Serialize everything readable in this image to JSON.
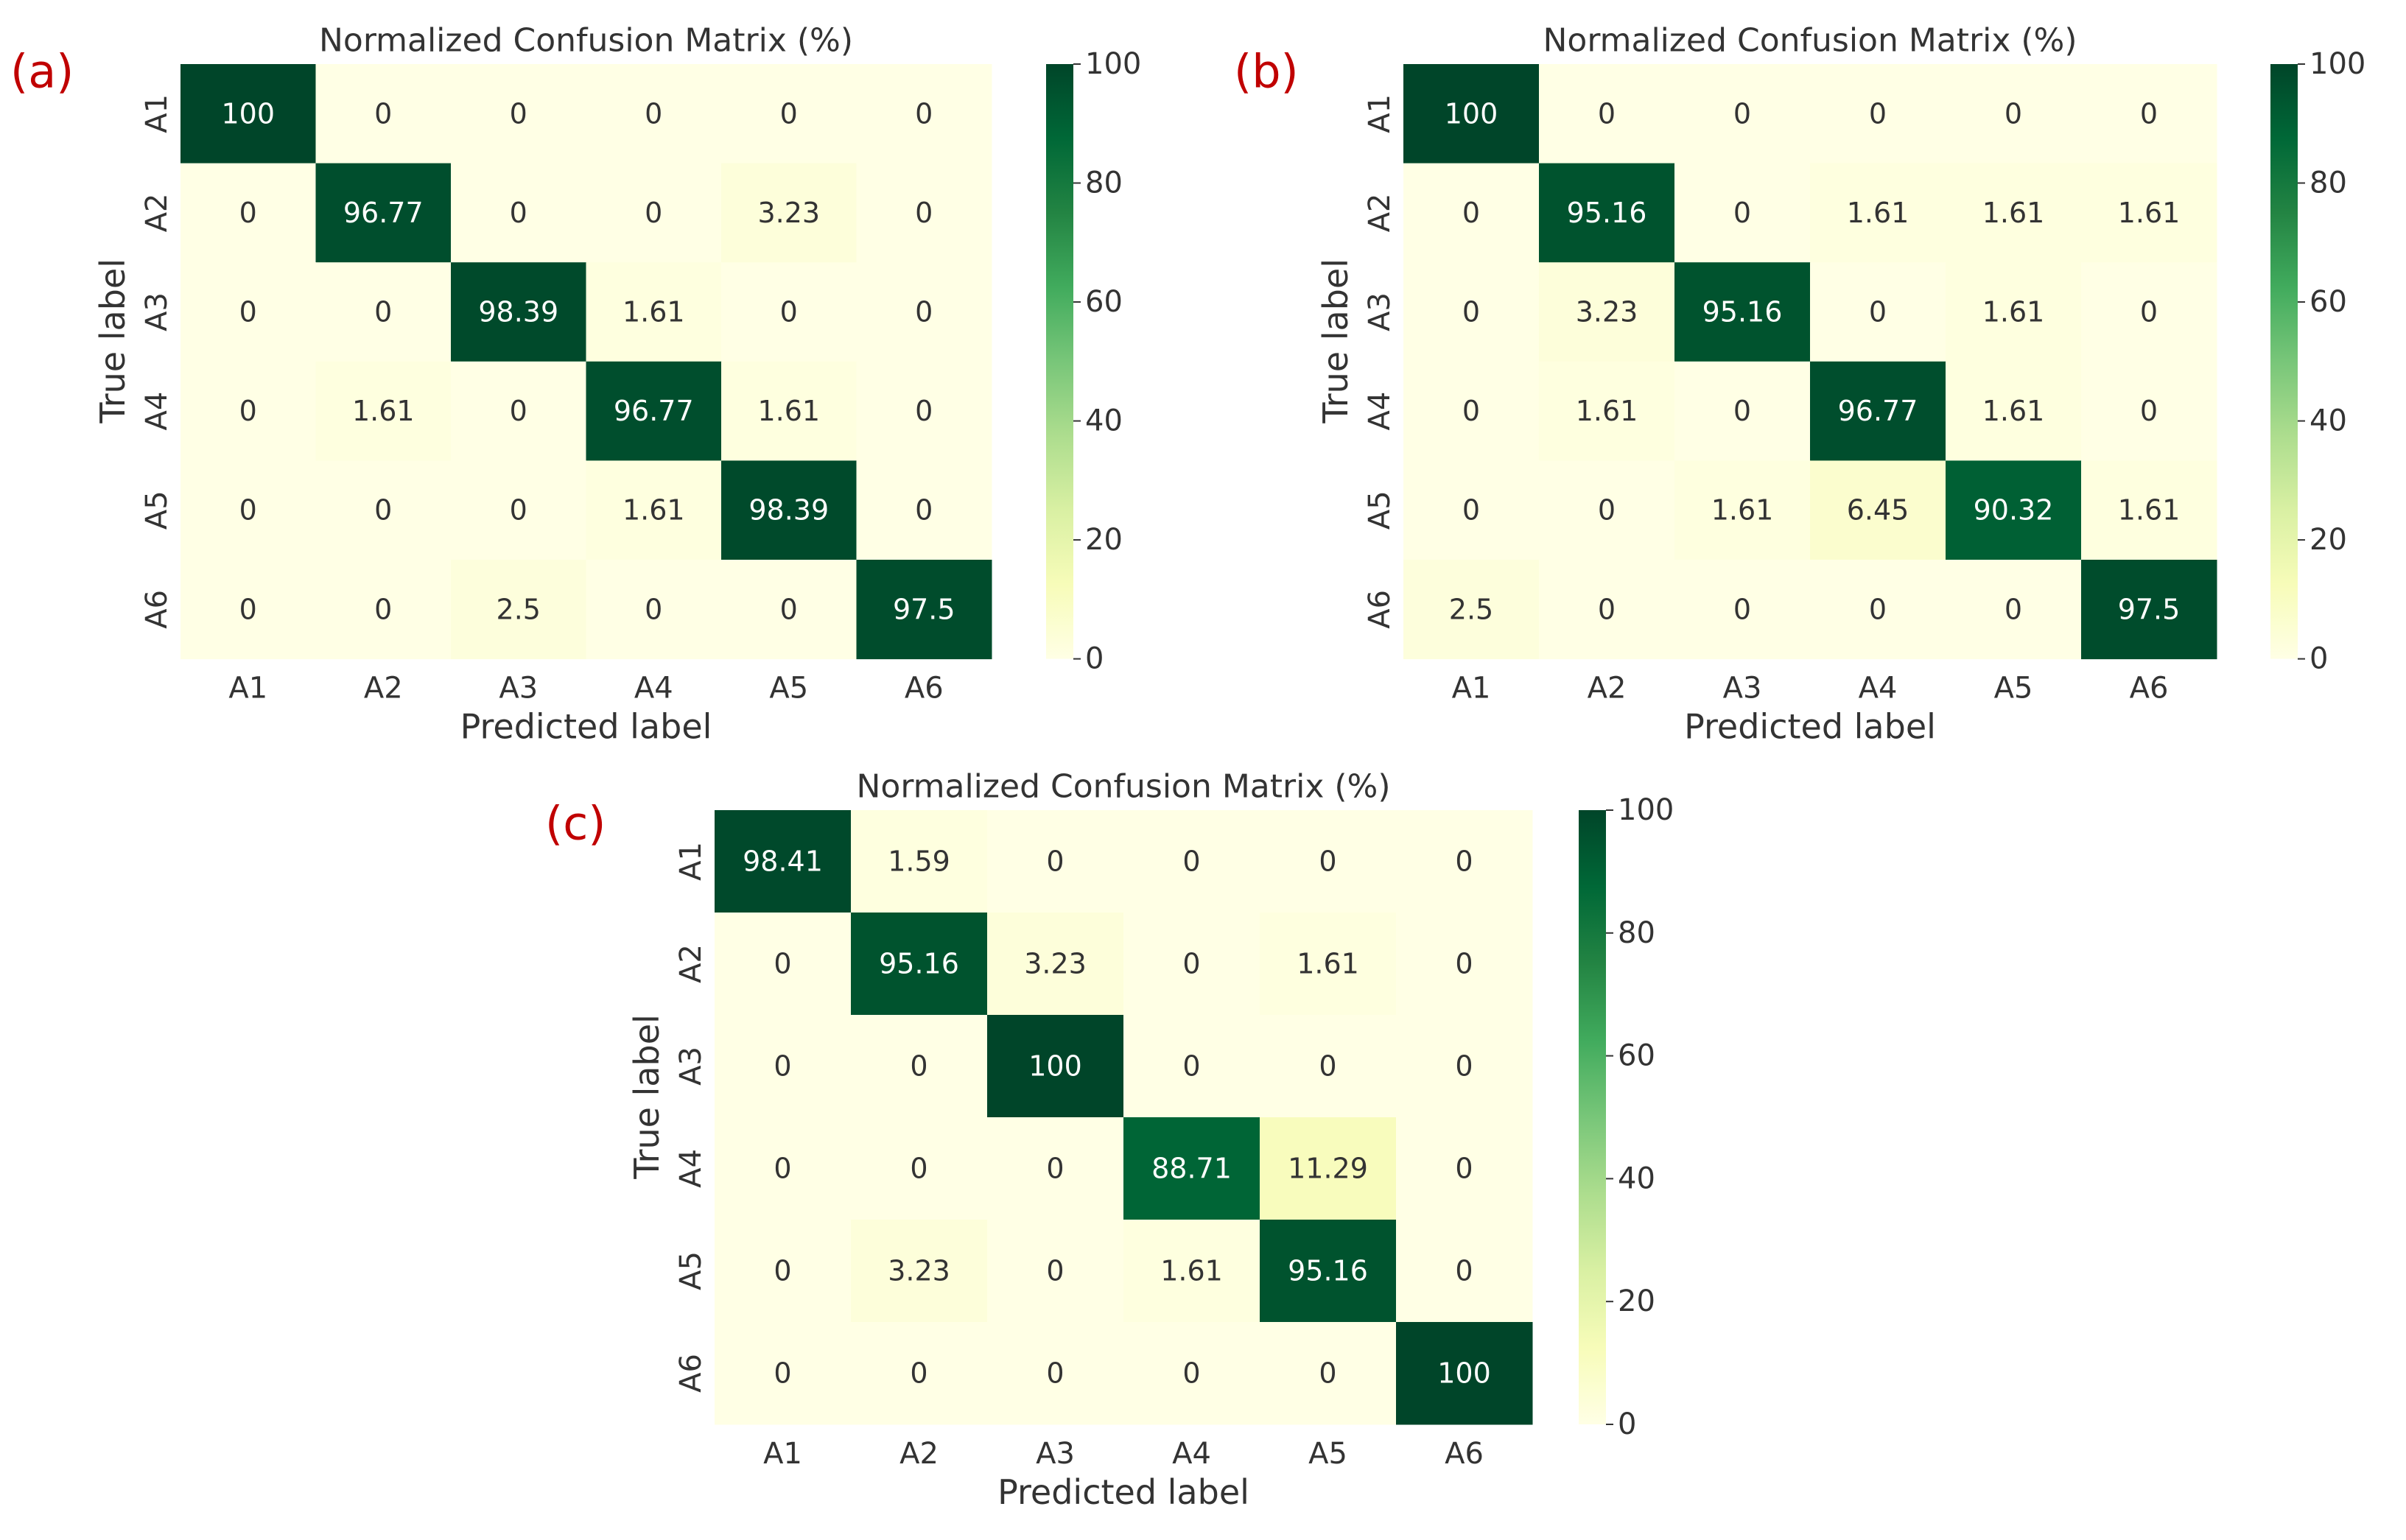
{
  "figure": {
    "panel_label_color": "#c00000",
    "colormap": [
      "#ffffe5",
      "#f7fcb9",
      "#d9f0a3",
      "#addd8e",
      "#78c679",
      "#41ab5d",
      "#238443",
      "#006837",
      "#004529"
    ]
  },
  "chart_data": [
    {
      "type": "heatmap",
      "panel": "(a)",
      "title": "Normalized Confusion Matrix (%)",
      "xlabel": "Predicted label",
      "ylabel": "True label",
      "x_categories": [
        "A1",
        "A2",
        "A3",
        "A4",
        "A5",
        "A6"
      ],
      "y_categories": [
        "A1",
        "A2",
        "A3",
        "A4",
        "A5",
        "A6"
      ],
      "values": [
        [
          "100",
          "0",
          "0",
          "0",
          "0",
          "0"
        ],
        [
          "0",
          "96.77",
          "0",
          "0",
          "3.23",
          "0"
        ],
        [
          "0",
          "0",
          "98.39",
          "1.61",
          "0",
          "0"
        ],
        [
          "0",
          "1.61",
          "0",
          "96.77",
          "1.61",
          "0"
        ],
        [
          "0",
          "0",
          "0",
          "1.61",
          "98.39",
          "0"
        ],
        [
          "0",
          "0",
          "2.5",
          "0",
          "0",
          "97.5"
        ]
      ],
      "colorbar": {
        "range": [
          0,
          100
        ],
        "ticks": [
          "0",
          "20",
          "40",
          "60",
          "80",
          "100"
        ]
      }
    },
    {
      "type": "heatmap",
      "panel": "(b)",
      "title": "Normalized Confusion Matrix (%)",
      "xlabel": "Predicted label",
      "ylabel": "True label",
      "x_categories": [
        "A1",
        "A2",
        "A3",
        "A4",
        "A5",
        "A6"
      ],
      "y_categories": [
        "A1",
        "A2",
        "A3",
        "A4",
        "A5",
        "A6"
      ],
      "values": [
        [
          "100",
          "0",
          "0",
          "0",
          "0",
          "0"
        ],
        [
          "0",
          "95.16",
          "0",
          "1.61",
          "1.61",
          "1.61"
        ],
        [
          "0",
          "3.23",
          "95.16",
          "0",
          "1.61",
          "0"
        ],
        [
          "0",
          "1.61",
          "0",
          "96.77",
          "1.61",
          "0"
        ],
        [
          "0",
          "0",
          "1.61",
          "6.45",
          "90.32",
          "1.61"
        ],
        [
          "2.5",
          "0",
          "0",
          "0",
          "0",
          "97.5"
        ]
      ],
      "colorbar": {
        "range": [
          0,
          100
        ],
        "ticks": [
          "0",
          "20",
          "40",
          "60",
          "80",
          "100"
        ]
      }
    },
    {
      "type": "heatmap",
      "panel": "(c)",
      "title": "Normalized Confusion Matrix (%)",
      "xlabel": "Predicted label",
      "ylabel": "True label",
      "x_categories": [
        "A1",
        "A2",
        "A3",
        "A4",
        "A5",
        "A6"
      ],
      "y_categories": [
        "A1",
        "A2",
        "A3",
        "A4",
        "A5",
        "A6"
      ],
      "values": [
        [
          "98.41",
          "1.59",
          "0",
          "0",
          "0",
          "0"
        ],
        [
          "0",
          "95.16",
          "3.23",
          "0",
          "1.61",
          "0"
        ],
        [
          "0",
          "0",
          "100",
          "0",
          "0",
          "0"
        ],
        [
          "0",
          "0",
          "0",
          "88.71",
          "11.29",
          "0"
        ],
        [
          "0",
          "3.23",
          "0",
          "1.61",
          "95.16",
          "0"
        ],
        [
          "0",
          "0",
          "0",
          "0",
          "0",
          "100"
        ]
      ],
      "colorbar": {
        "range": [
          0,
          100
        ],
        "ticks": [
          "0",
          "20",
          "40",
          "60",
          "80",
          "100"
        ]
      }
    }
  ]
}
